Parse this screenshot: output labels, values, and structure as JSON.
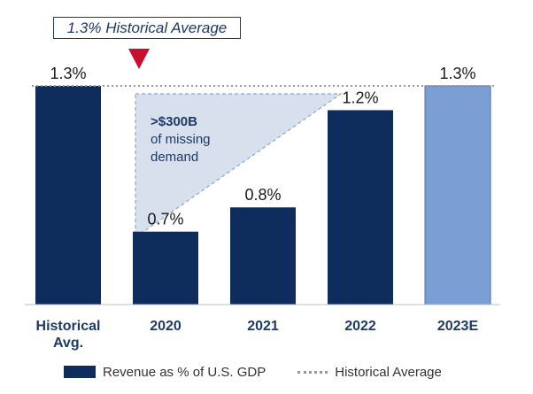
{
  "callout": {
    "label": "1.3% Historical Average"
  },
  "annotation": {
    "value": ">$300B",
    "line1": "of missing",
    "line2": "demand"
  },
  "colors": {
    "bar": "#0f2d5c",
    "estimate_bar": "#7b9fd4",
    "triangle_fill": "#d7e0ec",
    "triangle_border": "#8aa7cc",
    "reference_line": "#999999",
    "callout_arrow": "#c8102e"
  },
  "chart_data": {
    "type": "bar",
    "categories": [
      "Historical Avg.",
      "2020",
      "2021",
      "2022",
      "2023E"
    ],
    "values": [
      1.3,
      0.7,
      0.8,
      1.2,
      1.3
    ],
    "value_labels": [
      "1.3%",
      "0.7%",
      "0.8%",
      "1.2%",
      "1.3%"
    ],
    "estimate_index": 4,
    "reference_line": {
      "name": "Historical Average",
      "value": 1.3,
      "style": "dotted"
    },
    "series": [
      {
        "name": "Revenue as % of U.S. GDP",
        "values": [
          1.3,
          0.7,
          0.8,
          1.2,
          1.3
        ]
      }
    ],
    "ylim": [
      0.4,
      1.3
    ],
    "legend_position": "bottom"
  }
}
